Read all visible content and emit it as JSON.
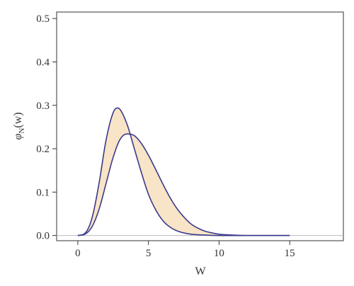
{
  "chart_data": {
    "type": "area",
    "xlabel": "W",
    "ylabel": {
      "symbol": "φ",
      "subscript": "N",
      "arg": "(w)"
    },
    "xlim": [
      -1.5,
      18.8
    ],
    "ylim": [
      -0.012,
      0.515
    ],
    "xticks": [
      0,
      5,
      10,
      15
    ],
    "yticks": [
      0.0,
      0.1,
      0.2,
      0.3,
      0.4,
      0.5
    ],
    "ytick_labels": [
      "0.0",
      "0.1",
      "0.2",
      "0.3",
      "0.4",
      "0.5"
    ],
    "baseline": 0.0,
    "fill_color": "#f8e4c6",
    "line_color": "#3a3a8c",
    "baseline_color": "#bbbbbb",
    "series": [
      {
        "x": [
          0,
          0.5,
          1,
          1.5,
          2,
          2.5,
          2.8,
          3,
          3.5,
          4,
          4.5,
          5,
          5.5,
          6,
          6.5,
          7,
          7.5,
          8,
          9,
          10,
          11,
          12,
          13,
          14,
          15
        ],
        "values": [
          0.0,
          0.005,
          0.04,
          0.12,
          0.22,
          0.283,
          0.294,
          0.29,
          0.255,
          0.2,
          0.145,
          0.095,
          0.06,
          0.035,
          0.02,
          0.011,
          0.006,
          0.003,
          0.001,
          0.0,
          0.0,
          0.0,
          0.0,
          0.0,
          0.0
        ]
      },
      {
        "x": [
          0,
          0.5,
          1,
          1.5,
          2,
          2.5,
          3,
          3.5,
          4,
          4.5,
          5,
          5.5,
          6,
          6.5,
          7,
          7.5,
          8,
          8.5,
          9,
          9.5,
          10,
          11,
          12,
          13,
          14,
          15
        ],
        "values": [
          0.0,
          0.003,
          0.02,
          0.06,
          0.12,
          0.18,
          0.222,
          0.234,
          0.23,
          0.212,
          0.185,
          0.153,
          0.12,
          0.089,
          0.063,
          0.043,
          0.027,
          0.017,
          0.01,
          0.006,
          0.003,
          0.001,
          0.0,
          0.0,
          0.0,
          0.0
        ]
      }
    ]
  }
}
